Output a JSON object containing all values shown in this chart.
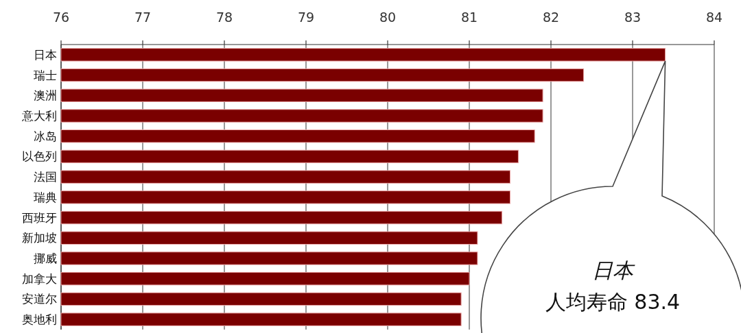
{
  "chart_data": {
    "type": "bar",
    "orientation": "horizontal",
    "categories": [
      "日本",
      "瑞士",
      "澳洲",
      "意大利",
      "冰岛",
      "以色列",
      "法国",
      "瑞典",
      "西班牙",
      "新加坡",
      "挪威",
      "加拿大",
      "安道尔",
      "奥地利"
    ],
    "values": [
      83.4,
      82.4,
      81.9,
      81.9,
      81.8,
      81.6,
      81.5,
      81.5,
      81.4,
      81.1,
      81.1,
      81.0,
      80.9,
      80.9
    ],
    "color": "#7a0000",
    "xlim": [
      76,
      84
    ],
    "xticks": [
      76,
      77,
      78,
      79,
      80,
      81,
      82,
      83,
      84
    ],
    "grid": "x",
    "annotations": [
      "日本",
      "人均寿命 83.4"
    ]
  }
}
